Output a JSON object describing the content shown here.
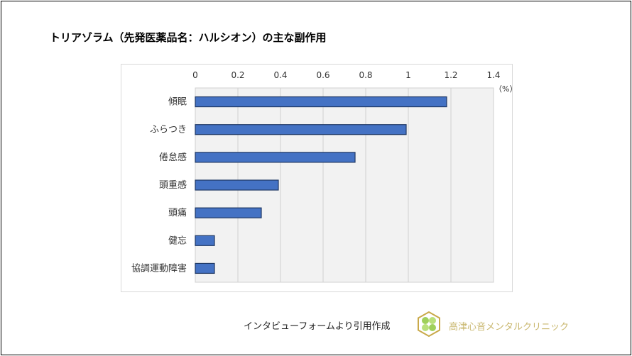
{
  "title": "トリアゾラム（先発医薬品名：ハルシオン）の主な副作用",
  "chart_data": {
    "type": "bar",
    "orientation": "horizontal",
    "categories": [
      "傾眠",
      "ふらつき",
      "倦怠感",
      "頭重感",
      "頭痛",
      "健忘",
      "協調運動障害"
    ],
    "values": [
      1.18,
      0.99,
      0.75,
      0.39,
      0.31,
      0.09,
      0.09
    ],
    "xlim": [
      0,
      1.4
    ],
    "xticks": [
      "0",
      "0.2",
      "0.4",
      "0.6",
      "0.8",
      "1",
      "1.2",
      "1.4"
    ],
    "unit_label": "（%）",
    "grid": true,
    "bar_color": "#4472c4",
    "bar_edge_color": "#1f3864",
    "plot_background": "#f2f2f2"
  },
  "source": "インタビューフォームより引用作成",
  "clinic_name": "高津心音メンタルクリニック"
}
